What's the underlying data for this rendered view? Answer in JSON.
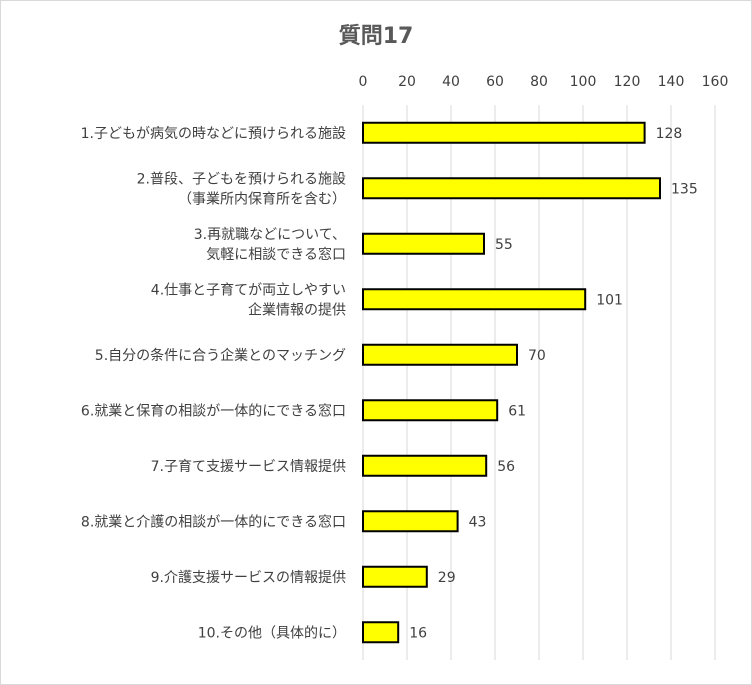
{
  "chart_data": {
    "type": "bar",
    "orientation": "horizontal",
    "title": "質問17",
    "xlim": [
      0,
      160
    ],
    "x_ticks": [
      0,
      20,
      40,
      60,
      80,
      100,
      120,
      140,
      160
    ],
    "grid": true,
    "bar_color": "#ffff00",
    "bar_edge_color": "#000000",
    "categories": [
      [
        "1.子どもが病気の時などに預けられる施設"
      ],
      [
        "2.普段、子どもを預けられる施設",
        "（事業所内保育所を含む）"
      ],
      [
        "3.再就職などについて、",
        "気軽に相談できる窓口"
      ],
      [
        "4.仕事と子育てが両立しやすい",
        "企業情報の提供"
      ],
      [
        "5.自分の条件に合う企業とのマッチング"
      ],
      [
        "6.就業と保育の相談が一体的にできる窓口"
      ],
      [
        "7.子育て支援サービス情報提供"
      ],
      [
        "8.就業と介護の相談が一体的にできる窓口"
      ],
      [
        "9.介護支援サービスの情報提供"
      ],
      [
        "10.その他（具体的に）"
      ]
    ],
    "values": [
      128,
      135,
      55,
      101,
      70,
      61,
      56,
      43,
      29,
      16
    ]
  }
}
